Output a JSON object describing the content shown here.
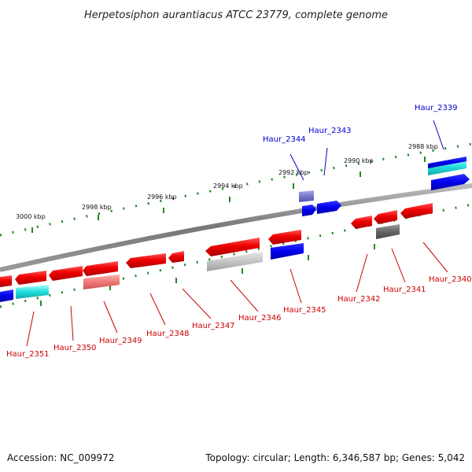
{
  "title": "Herpetosiphon aurantiacus ATCC 23779, complete genome",
  "footer": {
    "accession": "Accession: NC_009972",
    "summary": "Topology: circular; Length: 6,346,587 bp; Genes: 5,042"
  },
  "kbp_labels": [
    "3000 kbp",
    "2998 kbp",
    "2996 kbp",
    "2994 kbp",
    "2992 kbp",
    "2990 kbp",
    "2988 kbp"
  ],
  "genes_forward": [
    "Haur_2344",
    "Haur_2343",
    "Haur_2339"
  ],
  "genes_reverse": [
    "Haur_2351",
    "Haur_2350",
    "Haur_2349",
    "Haur_2348",
    "Haur_2347",
    "Haur_2346",
    "Haur_2345",
    "Haur_2342",
    "Haur_2341",
    "Haur_2340"
  ],
  "colors": {
    "forward_label": "#0000cc",
    "reverse_label": "#cc0000",
    "tick": "#228822",
    "backbone": "#888888"
  }
}
